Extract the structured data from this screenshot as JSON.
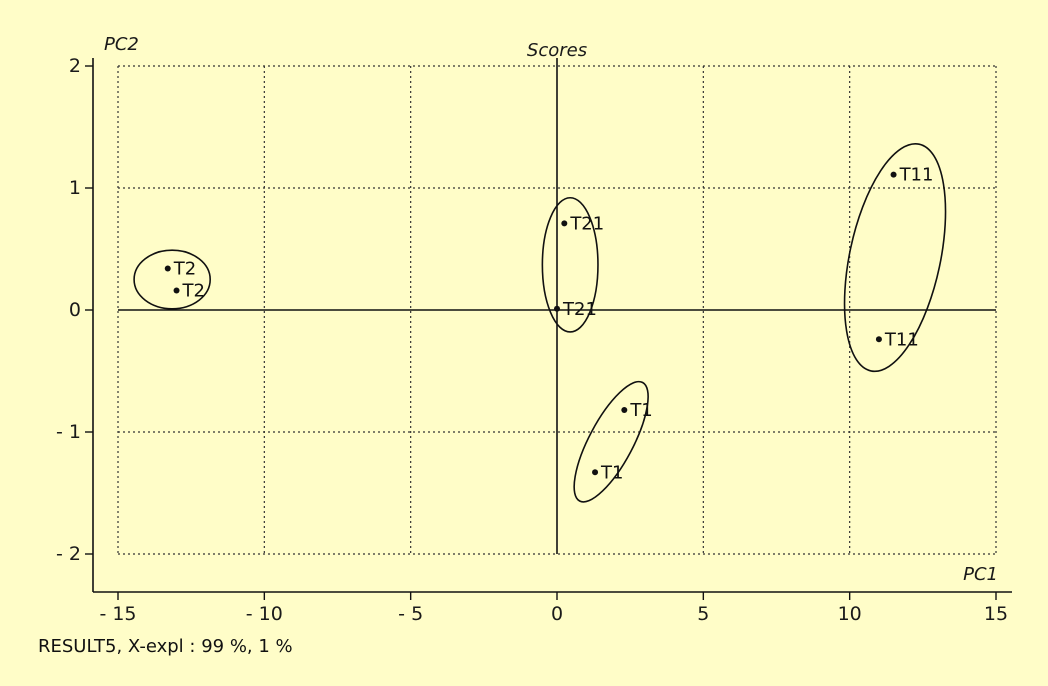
{
  "chart_data": {
    "type": "scatter",
    "title": "Scores",
    "xlabel": "PC1",
    "ylabel": "PC2",
    "xlim": [
      -15,
      15
    ],
    "ylim": [
      -2,
      2
    ],
    "x_ticks": [
      -15,
      -10,
      -5,
      0,
      5,
      10,
      15
    ],
    "y_ticks": [
      -2,
      -1,
      0,
      1,
      2
    ],
    "x_tick_labels": [
      "- 15",
      "- 10",
      "- 5",
      "0",
      "5",
      "10",
      "15"
    ],
    "y_tick_labels": [
      "- 2",
      "- 1",
      "0",
      "1",
      "2"
    ],
    "grid": true,
    "points": [
      {
        "label": "T2",
        "x": -13.3,
        "y": 0.34
      },
      {
        "label": "T2",
        "x": -13.0,
        "y": 0.16
      },
      {
        "label": "T21",
        "x": 0.25,
        "y": 0.71
      },
      {
        "label": "T21",
        "x": 0.0,
        "y": 0.01
      },
      {
        "label": "T1",
        "x": 2.3,
        "y": -0.82
      },
      {
        "label": "T1",
        "x": 1.3,
        "y": -1.33
      },
      {
        "label": "T11",
        "x": 11.5,
        "y": 1.11
      },
      {
        "label": "T11",
        "x": 11.0,
        "y": -0.24
      }
    ],
    "groups": [
      {
        "label": "T2",
        "cx": -13.15,
        "cy": 0.25,
        "rx": 1.3,
        "ry": 0.24,
        "angle": 0
      },
      {
        "label": "T21",
        "cx": 0.45,
        "cy": 0.37,
        "rx": 0.95,
        "ry": 0.55,
        "angle": 0
      },
      {
        "label": "T1",
        "cx": 1.85,
        "cy": -1.08,
        "rx": 0.75,
        "ry": 0.55,
        "angle": 28
      },
      {
        "label": "T11",
        "cx": 11.55,
        "cy": 0.43,
        "rx": 1.55,
        "ry": 0.95,
        "angle": 12
      }
    ]
  },
  "footer": "RESULT5, X-expl : 99 %, 1 %",
  "colors": {
    "background": "#fffdc8",
    "ink": "#111111"
  }
}
